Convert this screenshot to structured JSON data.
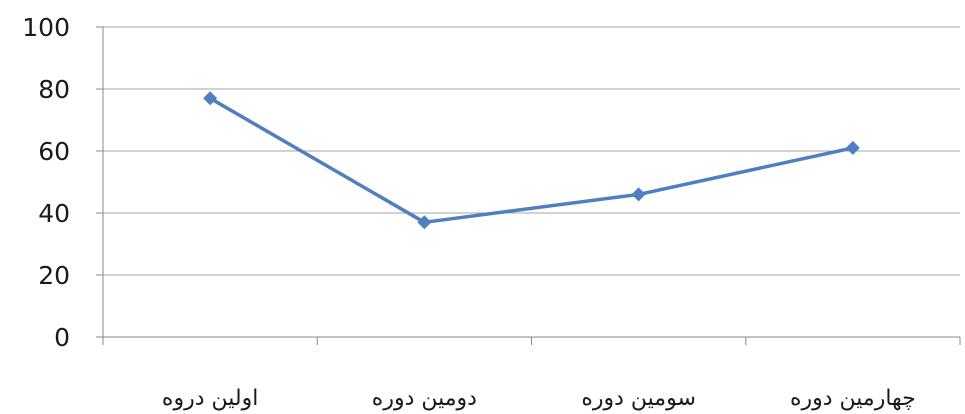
{
  "chart_data": {
    "type": "line",
    "categories": [
      "اولین دروه",
      "دومین دوره",
      "سومین دوره",
      "چهارمین دوره"
    ],
    "series": [
      {
        "values": [
          77,
          37,
          46,
          61
        ]
      }
    ],
    "ylim": [
      0,
      100
    ],
    "yticks": [
      0,
      20,
      40,
      60,
      80,
      100
    ],
    "grid": true,
    "colors": {
      "line": "#4f7fc0",
      "grid": "#a6a6a6",
      "axis": "#888888"
    }
  }
}
